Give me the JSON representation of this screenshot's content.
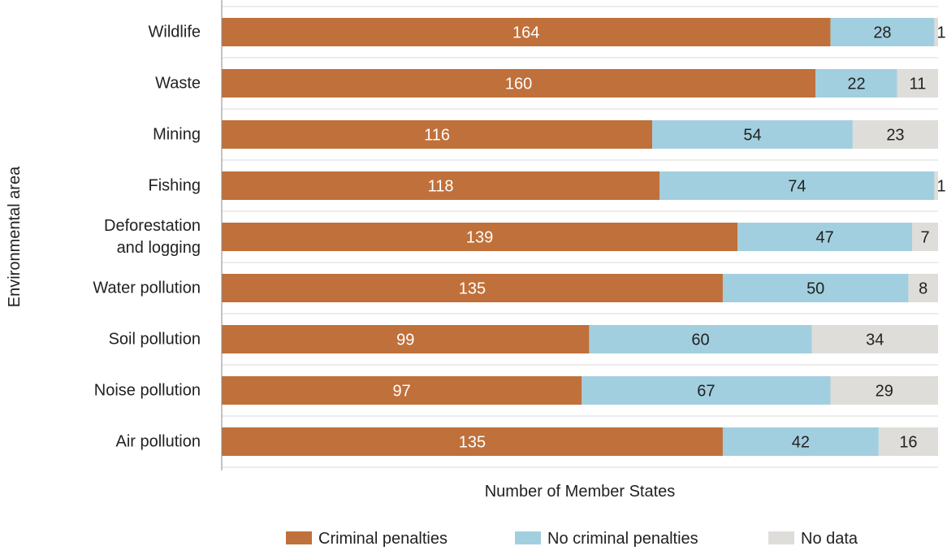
{
  "chart_data": {
    "type": "bar",
    "orientation": "horizontal",
    "stacked": true,
    "categories": [
      "Wildlife",
      "Waste",
      "Mining",
      "Fishing",
      "Deforestation and logging",
      "Water pollution",
      "Soil pollution",
      "Noise pollution",
      "Air pollution"
    ],
    "category_lines": [
      [
        "Wildlife"
      ],
      [
        "Waste"
      ],
      [
        "Mining"
      ],
      [
        "Fishing"
      ],
      [
        "Deforestation",
        "and logging"
      ],
      [
        "Water pollution"
      ],
      [
        "Soil pollution"
      ],
      [
        "Noise pollution"
      ],
      [
        "Air pollution"
      ]
    ],
    "series": [
      {
        "name": "Criminal penalties",
        "color": "#C0703A",
        "label_color": "#ffffff",
        "values": [
          164,
          160,
          116,
          118,
          139,
          135,
          99,
          97,
          135
        ]
      },
      {
        "name": "No criminal penalties",
        "color": "#A2CFDF",
        "label_color": "#222222",
        "values": [
          28,
          22,
          54,
          74,
          47,
          50,
          60,
          67,
          42
        ]
      },
      {
        "name": "No data",
        "color": "#DEDDDA",
        "label_color": "#222222",
        "values": [
          1,
          11,
          23,
          1,
          7,
          8,
          34,
          29,
          16
        ]
      }
    ],
    "xlabel": "Number of Member States",
    "ylabel": "Environmental area",
    "xlim": [
      0,
      193
    ],
    "grid": "horizontal separators between bars",
    "legend_position": "bottom"
  }
}
